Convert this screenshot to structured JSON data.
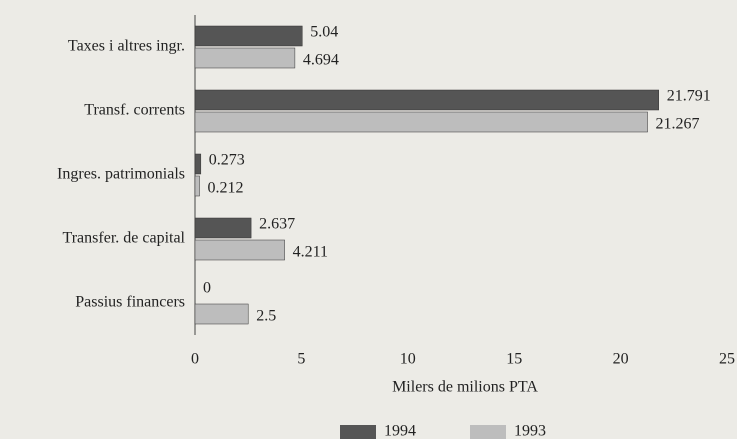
{
  "chart_data": {
    "type": "bar",
    "orientation": "horizontal",
    "categories": [
      "Taxes i altres ingr.",
      "Transf. corrents",
      "Ingres. patrimonials",
      "Transfer. de capital",
      "Passius financers"
    ],
    "series": [
      {
        "name": "1994",
        "color": "#555555",
        "values": [
          5.04,
          21.791,
          0.273,
          2.637,
          0
        ]
      },
      {
        "name": "1993",
        "color": "#bdbdbd",
        "values": [
          4.694,
          21.267,
          0.212,
          4.211,
          2.5
        ]
      }
    ],
    "xlabel": "Milers de milions PTA",
    "xlim": [
      0,
      25
    ],
    "xticks": [
      0,
      5,
      10,
      15,
      20,
      25
    ],
    "legend": "bottom"
  }
}
